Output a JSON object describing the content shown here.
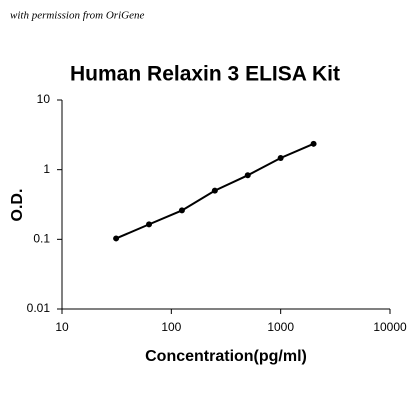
{
  "chart_data": {
    "type": "line",
    "watermark": "with permission from OriGene",
    "title": "Human Relaxin 3 ELISA Kit",
    "x_label": "Concentration(pg/ml)",
    "y_label": "O.D.",
    "x": [
      31.25,
      62.5,
      125,
      250,
      500,
      1000,
      2000
    ],
    "values": [
      0.103,
      0.164,
      0.26,
      0.5,
      0.83,
      1.47,
      2.35
    ],
    "color": "#000000",
    "xscale": "log",
    "yscale": "log",
    "xlim": [
      10,
      10000
    ],
    "xticks": [
      10,
      100,
      1000,
      10000
    ],
    "ylim": [
      0.01,
      10
    ],
    "yticks": [
      0.01,
      0.1,
      1,
      10
    ],
    "grid": false
  }
}
